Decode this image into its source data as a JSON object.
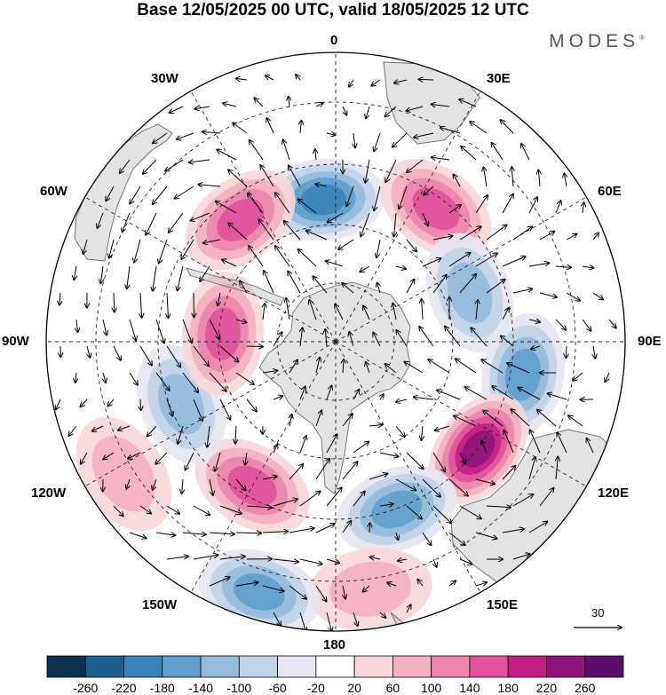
{
  "title": "Base 12/05/2025 00 UTC, valid 18/05/2025 12 UTC",
  "brand": "MODES",
  "brand_mark": "®",
  "longitude_labels": {
    "lon_0": "0",
    "lon_30e": "30E",
    "lon_60e": "60E",
    "lon_90e": "90E",
    "lon_120e": "120E",
    "lon_150e": "150E",
    "lon_180": "180",
    "lon_150w": "150W",
    "lon_120w": "120W",
    "lon_90w": "90W",
    "lon_60w": "60W",
    "lon_30w": "30W"
  },
  "reference_vector": {
    "value": "30"
  },
  "colorbar": {
    "ticks": [
      "-260",
      "-220",
      "-180",
      "-140",
      "-100",
      "-60",
      "-20",
      "20",
      "60",
      "100",
      "140",
      "180",
      "220",
      "260"
    ],
    "colors": [
      "#0b3350",
      "#1d5f8e",
      "#3a84bb",
      "#62a0cc",
      "#95bbdc",
      "#c2d2e8",
      "#e5e6f1",
      "#ffffff",
      "#f8d7da",
      "#f3b1c0",
      "#ec86ad",
      "#e0539c",
      "#c41f86",
      "#8f1578",
      "#5a0e6c"
    ]
  },
  "anomaly_centers": [
    {
      "lon": -5,
      "colat": 24,
      "value": -180
    },
    {
      "lon": 37,
      "colat": 28,
      "value": 160
    },
    {
      "lon": 70,
      "colat": 24,
      "value": -120
    },
    {
      "lon": 100,
      "colat": 32,
      "value": -150
    },
    {
      "lon": 127,
      "colat": 30,
      "value": 220
    },
    {
      "lon": 160,
      "colat": 30,
      "value": -140
    },
    {
      "lon": 172,
      "colat": 42,
      "value": 80
    },
    {
      "lon": -163,
      "colat": 44,
      "value": -140
    },
    {
      "lon": -150,
      "colat": 28,
      "value": 150
    },
    {
      "lon": -122,
      "colat": 42,
      "value": 80
    },
    {
      "lon": -112,
      "colat": 28,
      "value": -120
    },
    {
      "lon": -86,
      "colat": 19,
      "value": 170
    },
    {
      "lon": -38,
      "colat": 26,
      "value": 150
    }
  ]
}
